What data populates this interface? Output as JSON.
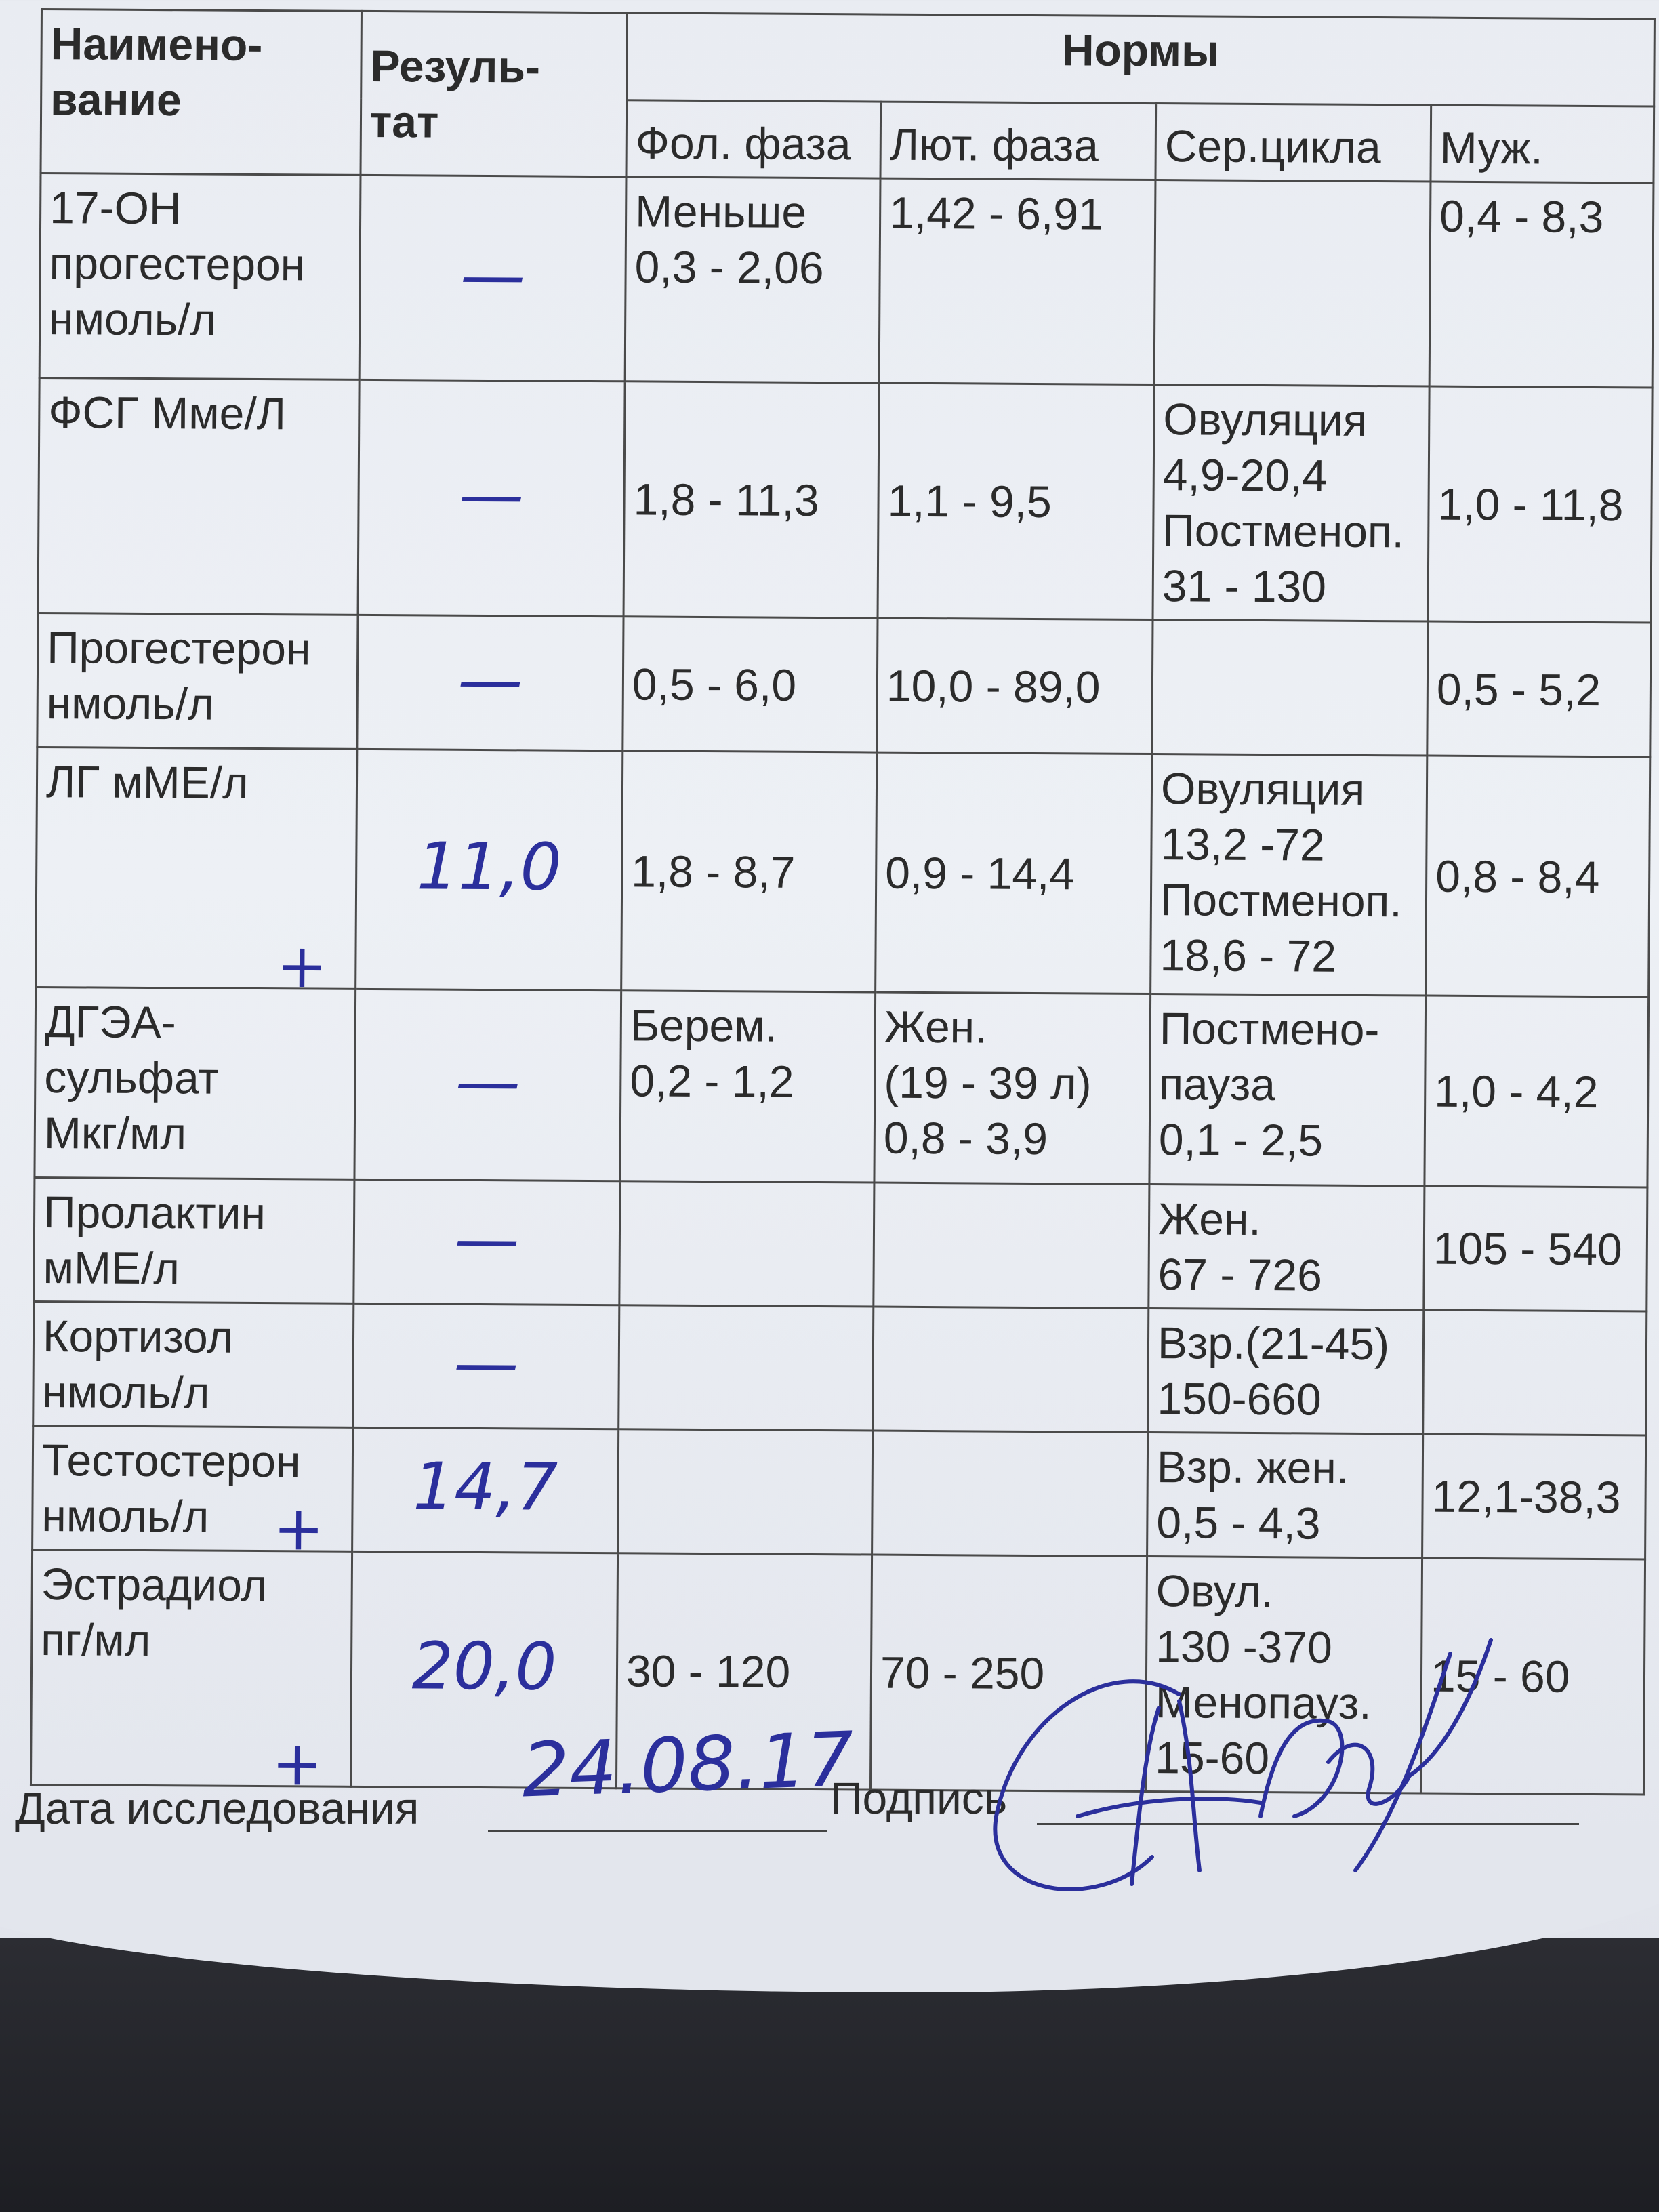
{
  "header": {
    "name_col": "Наимено-\nвание",
    "result_col": "Резуль-\nтат",
    "norms": "Нормы",
    "norm_cols": [
      "Фол. фаза",
      "Лют. фаза",
      "Сер.цикла",
      "Муж."
    ]
  },
  "rows": [
    {
      "name": "17-ОН\nпрогестерон\nнмоль/л",
      "result": "—",
      "plus": "",
      "norms": [
        "Меньше\n0,3 - 2,06",
        "1,42 - 6,91",
        "",
        "0,4 - 8,3"
      ]
    },
    {
      "name": "ФСГ Мме/Л",
      "result": "—",
      "plus": "",
      "norms": [
        "1,8 - 11,3",
        "1,1 - 9,5",
        "Овуляция\n4,9-20,4\nПостменоп.\n31 - 130",
        "1,0 - 11,8"
      ]
    },
    {
      "name": "Прогестерон\nнмоль/л",
      "result": "—",
      "plus": "",
      "norms": [
        "0,5 - 6,0",
        "10,0 - 89,0",
        "",
        "0,5 - 5,2"
      ]
    },
    {
      "name": "ЛГ мМЕ/л",
      "result": "11,0",
      "plus": "+",
      "norms": [
        "1,8 - 8,7",
        "0,9 - 14,4",
        "Овуляция\n13,2 -72\nПостменоп.\n18,6 - 72",
        "0,8 - 8,4"
      ]
    },
    {
      "name": "ДГЭА-\nсульфат\nМкг/мл",
      "result": "—",
      "plus": "",
      "norms": [
        "Берем.\n0,2 - 1,2",
        "Жен.\n(19 - 39 л)\n0,8 - 3,9",
        "Постмено-\nпауза\n0,1 - 2,5",
        "1,0 - 4,2"
      ]
    },
    {
      "name": "Пролактин\nмМЕ/л",
      "result": "—",
      "plus": "",
      "norms": [
        "",
        "",
        "Жен.\n67 - 726",
        "105 - 540"
      ]
    },
    {
      "name": "Кортизол\nнмоль/л",
      "result": "—",
      "plus": "",
      "norms": [
        "",
        "",
        "Взр.(21-45)\n150-660",
        ""
      ]
    },
    {
      "name": "Тестостерон\nнмоль/л",
      "result": "14,7",
      "plus": "+",
      "norms": [
        "",
        "",
        "Взр. жен.\n0,5 - 4,3",
        "12,1-38,3"
      ]
    },
    {
      "name": "Эстрадиол\nпг/мл",
      "result": "20,0",
      "plus": "+",
      "norms": [
        "30 - 120",
        "70 - 250",
        "Овул.\n130 -370\nМенопауз.\n15-60",
        "15 - 60"
      ]
    }
  ],
  "footer": {
    "date_label": "Дата исследования",
    "date_value": "24.08.17",
    "signature_label": "Подпись"
  },
  "colors": {
    "ink": "#2b2f9c",
    "print": "#2b2b2b",
    "paper": "#e9ecf2"
  }
}
